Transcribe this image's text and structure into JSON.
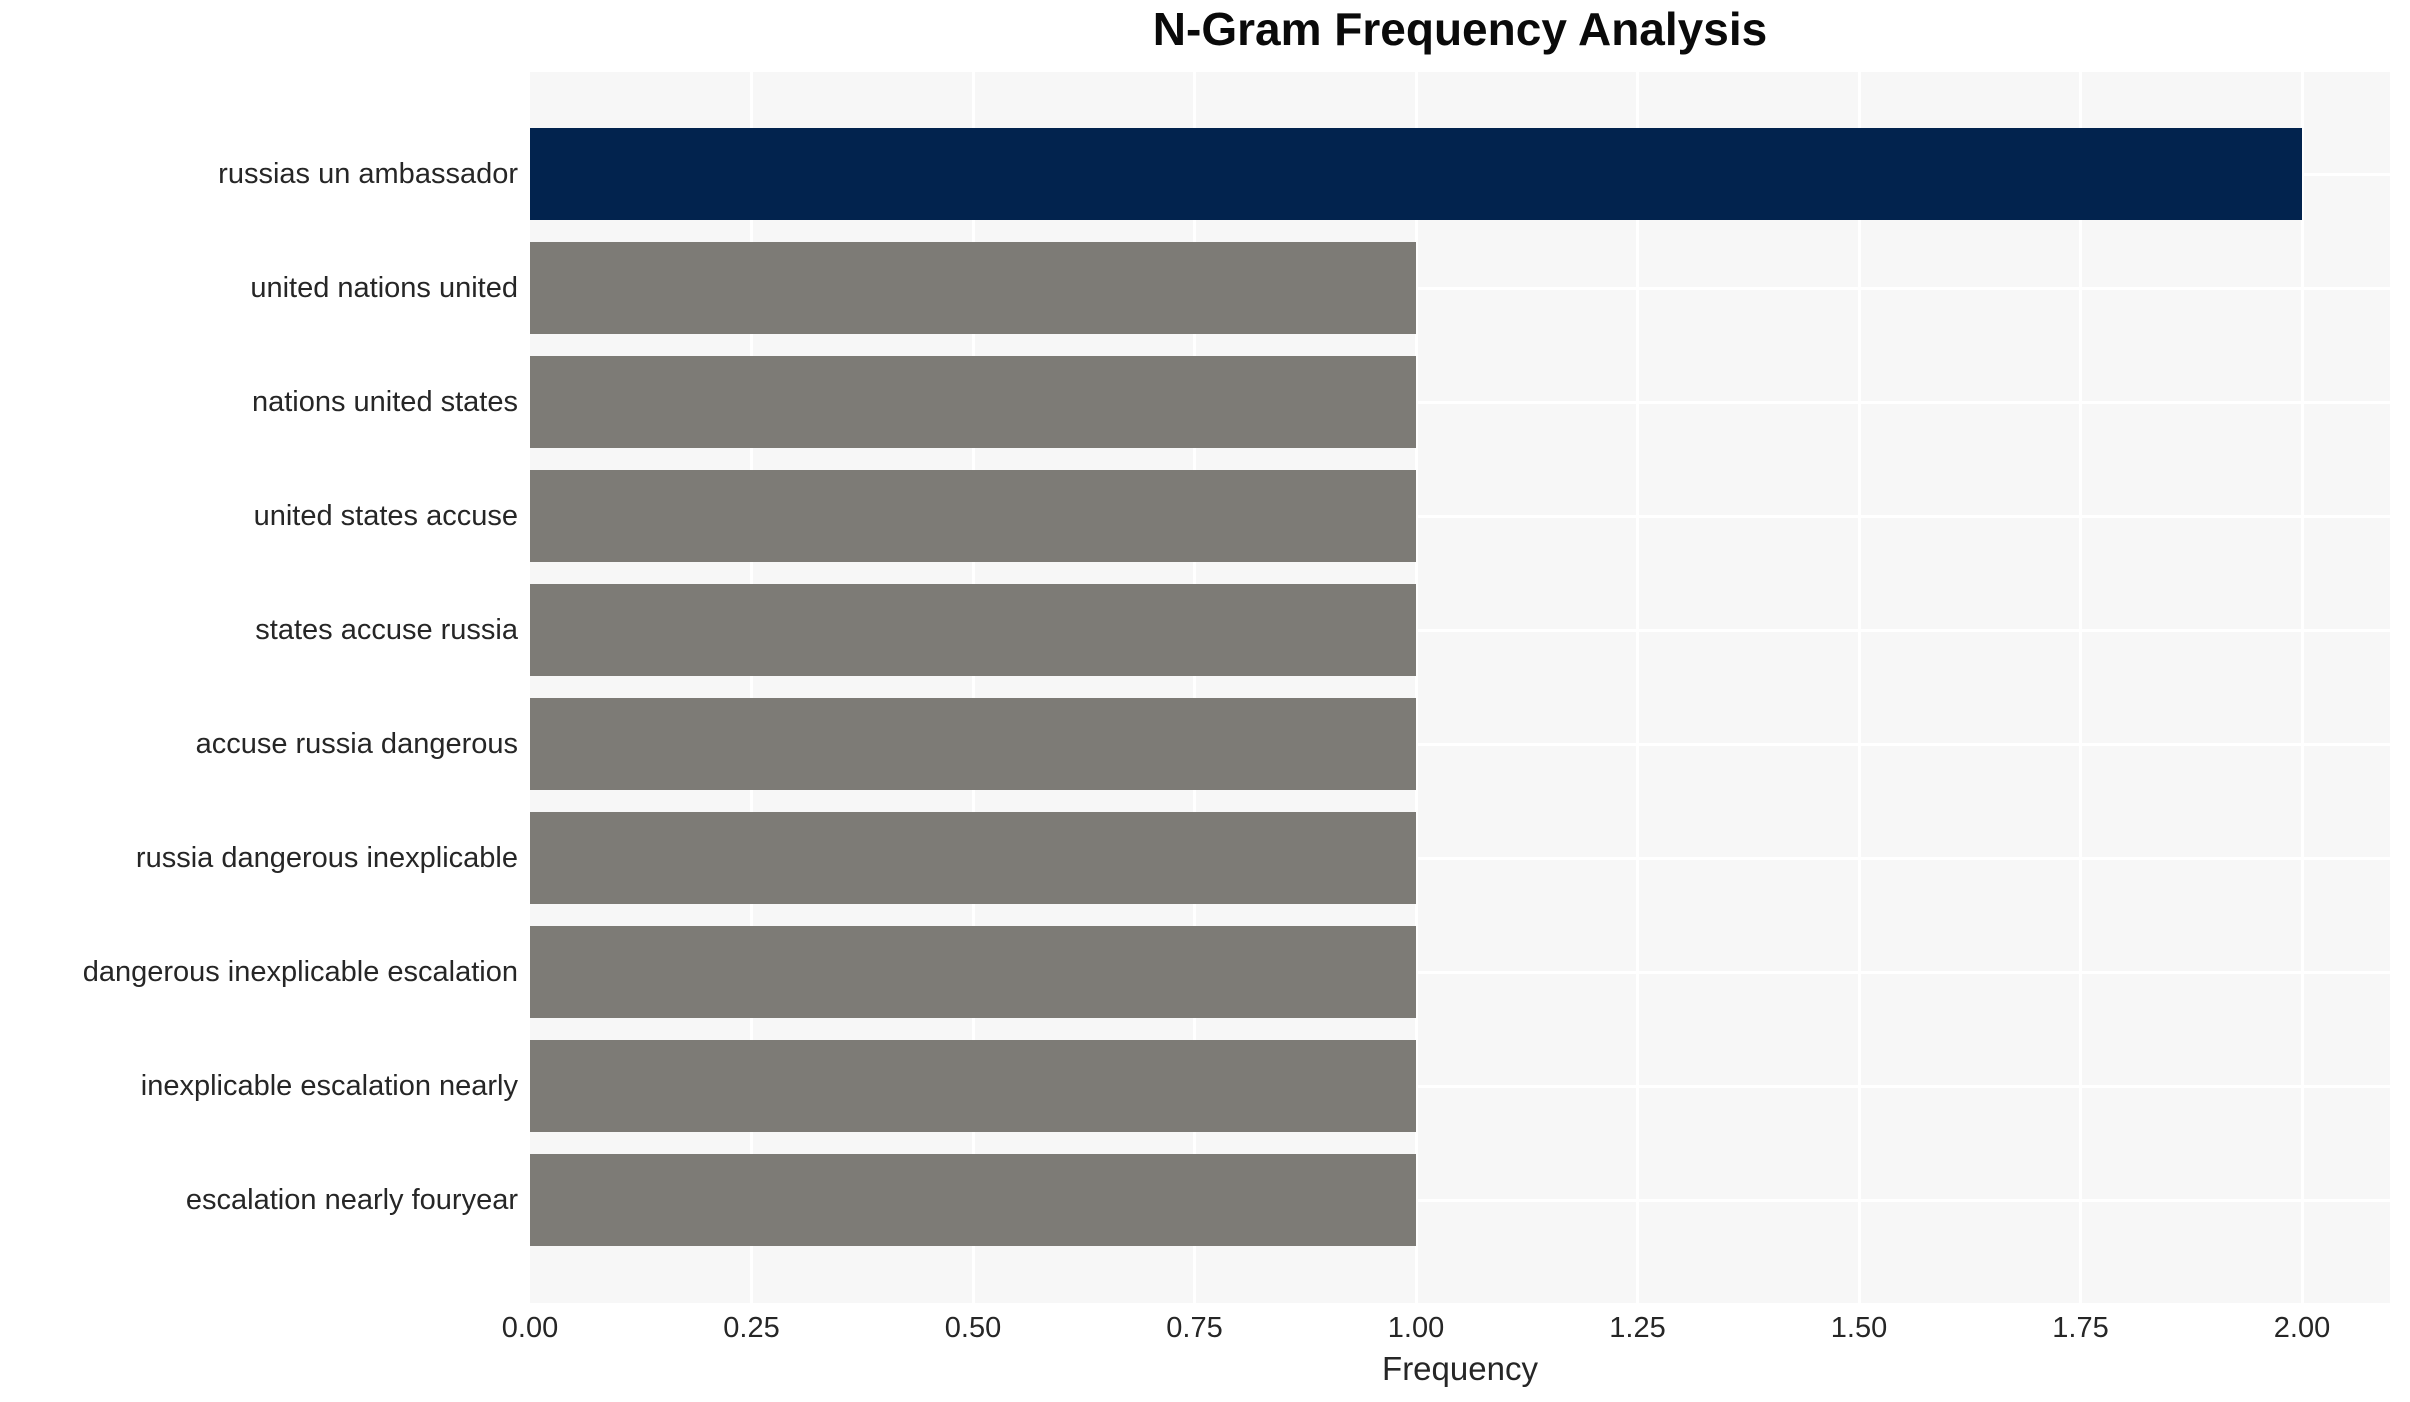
{
  "chart_data": {
    "type": "bar",
    "orientation": "horizontal",
    "title": "N-Gram Frequency Analysis",
    "xlabel": "Frequency",
    "ylabel": "",
    "categories": [
      "russias un ambassador",
      "united nations united",
      "nations united states",
      "united states accuse",
      "states accuse russia",
      "accuse russia dangerous",
      "russia dangerous inexplicable",
      "dangerous inexplicable escalation",
      "inexplicable escalation nearly",
      "escalation nearly fouryear"
    ],
    "values": [
      2,
      1,
      1,
      1,
      1,
      1,
      1,
      1,
      1,
      1
    ],
    "xlim": [
      0,
      2.1
    ],
    "x_ticks": [
      0,
      0.25,
      0.5,
      0.75,
      1.0,
      1.25,
      1.5,
      1.75,
      2.0
    ],
    "x_tick_labels": [
      "0.00",
      "0.25",
      "0.50",
      "0.75",
      "1.00",
      "1.25",
      "1.50",
      "1.75",
      "2.00"
    ],
    "grid": true,
    "legend": false,
    "colors": {
      "highlight_bar": "#02234e",
      "default_bar": "#7d7b76",
      "panel_background": "#f7f7f7",
      "gridline": "#ffffff",
      "text": "#262626",
      "title_text": "#0a0a0a",
      "page_background": "#ffffff"
    }
  }
}
